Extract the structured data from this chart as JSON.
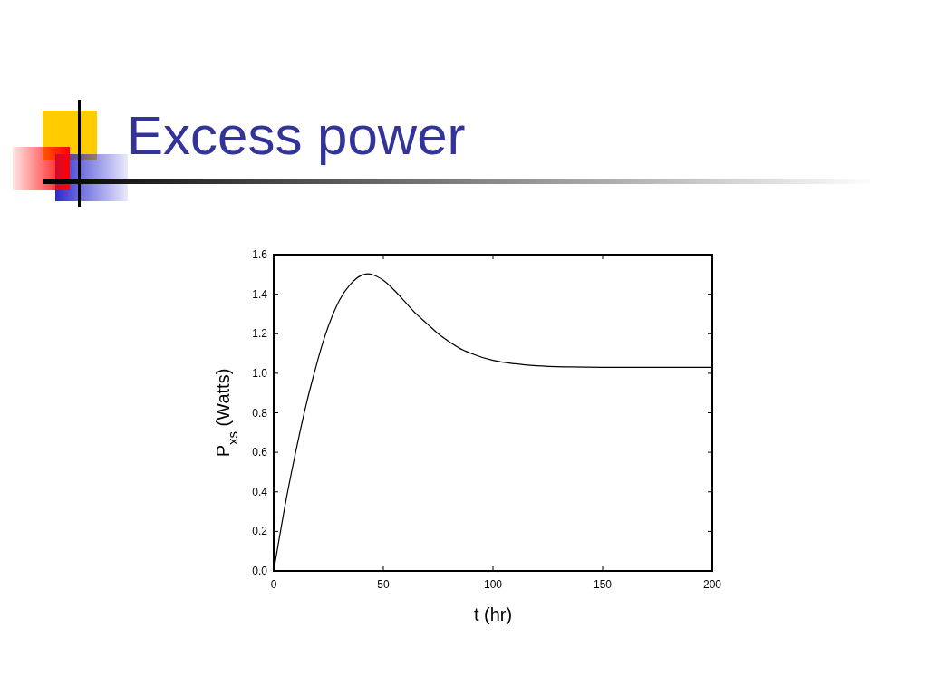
{
  "chart_data": {
    "type": "line",
    "title": "Excess power",
    "xlabel": "t (hr)",
    "ylabel": "P$_{xs}$ (Watts)",
    "x": [
      0,
      2,
      5,
      10,
      15,
      18,
      22,
      25,
      30,
      35,
      40,
      43,
      47,
      50,
      55,
      60,
      65,
      70,
      75,
      80,
      85,
      90,
      100,
      110,
      120,
      135,
      150,
      175,
      200
    ],
    "series": [
      {
        "color": "#000000",
        "values": [
          0,
          0.13,
          0.32,
          0.6,
          0.85,
          0.98,
          1.14,
          1.24,
          1.37,
          1.45,
          1.495,
          1.503,
          1.49,
          1.47,
          1.42,
          1.36,
          1.3,
          1.25,
          1.2,
          1.16,
          1.125,
          1.1,
          1.065,
          1.048,
          1.038,
          1.032,
          1.03,
          1.03,
          1.03
        ]
      }
    ],
    "xlim": [
      0,
      200
    ],
    "ylim": [
      0,
      1.6
    ],
    "xticks": [
      0,
      50,
      100,
      150,
      200
    ],
    "yticks": [
      {
        "value": 0,
        "label": "0.0"
      },
      {
        "value": 0.2,
        "label": "0.2"
      },
      {
        "value": 0.4,
        "label": "0.4"
      },
      {
        "value": 0.6,
        "label": "0.6"
      },
      {
        "value": 0.8,
        "label": "0.8"
      },
      {
        "value": 1,
        "label": "1.0"
      },
      {
        "value": 1.2,
        "label": "1.2"
      },
      {
        "value": 1.4,
        "label": "1.4"
      },
      {
        "value": 1.6,
        "label": "1.6"
      }
    ],
    "line_style": "solid"
  }
}
